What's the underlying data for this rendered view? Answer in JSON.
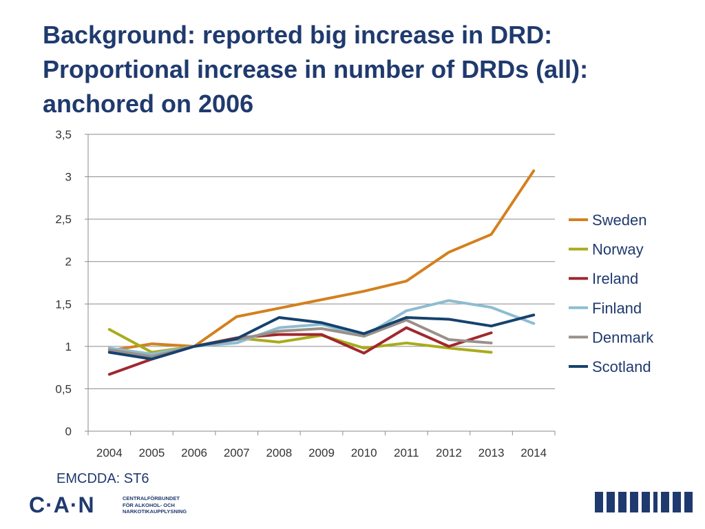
{
  "slide": {
    "title_lines": [
      "Background: reported big increase in DRD:",
      "Proportional increase in number of DRDs (all):",
      "anchored on 2006"
    ],
    "source_note": "EMCDDA: ST6",
    "logo": {
      "mark": "C·A·N",
      "text_lines": [
        "CENTRALFÖRBUNDET",
        "FÖR ALKOHOL- OCH",
        "NARKOTIKAUPPLYSNING"
      ],
      "color": "#1f3a6e"
    }
  },
  "chart_data": {
    "type": "line",
    "title": "",
    "xlabel": "",
    "ylabel": "",
    "categories": [
      "2004",
      "2005",
      "2006",
      "2007",
      "2008",
      "2009",
      "2010",
      "2011",
      "2012",
      "2013",
      "2014"
    ],
    "ylim": [
      0,
      3.5
    ],
    "yticks": [
      0,
      0.5,
      1,
      1.5,
      2,
      2.5,
      3,
      3.5
    ],
    "ytick_labels": [
      "0",
      "0,5",
      "1",
      "1,5",
      "2",
      "2,5",
      "3",
      "3,5"
    ],
    "grid": "horizontal",
    "legend_position": "right",
    "series": [
      {
        "name": "Sweden",
        "color": "#d4801e",
        "values": [
          0.95,
          1.03,
          1.0,
          1.35,
          1.45,
          1.55,
          1.65,
          1.77,
          2.11,
          2.32,
          3.07
        ]
      },
      {
        "name": "Norway",
        "color": "#a8ac1a",
        "values": [
          1.2,
          0.93,
          1.0,
          1.1,
          1.05,
          1.13,
          0.98,
          1.04,
          0.98,
          0.93,
          null
        ]
      },
      {
        "name": "Ireland",
        "color": "#a0282e",
        "values": [
          0.67,
          0.85,
          1.0,
          1.1,
          1.14,
          1.14,
          0.92,
          1.22,
          1.0,
          1.16,
          null
        ]
      },
      {
        "name": "Finland",
        "color": "#8dbdd1",
        "values": [
          0.98,
          0.91,
          1.0,
          1.04,
          1.22,
          1.26,
          1.12,
          1.42,
          1.54,
          1.46,
          1.27
        ]
      },
      {
        "name": "Denmark",
        "color": "#9a908a",
        "values": [
          0.96,
          0.88,
          1.0,
          1.08,
          1.18,
          1.21,
          1.12,
          1.31,
          1.08,
          1.04,
          null
        ]
      },
      {
        "name": "Scotland",
        "color": "#16426e",
        "values": [
          0.93,
          0.85,
          1.0,
          1.09,
          1.34,
          1.28,
          1.15,
          1.34,
          1.32,
          1.24,
          1.37
        ]
      }
    ]
  }
}
